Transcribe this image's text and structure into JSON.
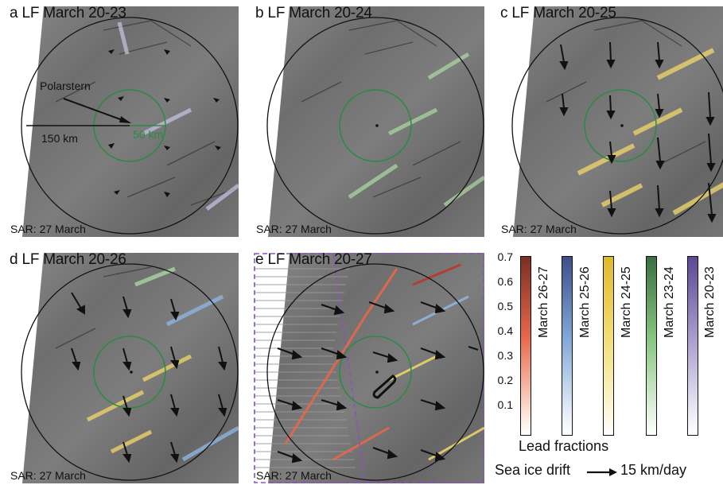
{
  "panels": [
    {
      "title": "a LF March 20-23",
      "sar": "SAR: 27 March",
      "annotation_polarstern": "Polarstern",
      "annotation_outer_radius": "150 km",
      "annotation_inner_radius": "50 km"
    },
    {
      "title": "b LF March 20-24",
      "sar": "SAR: 27 March"
    },
    {
      "title": "c LF March 20-25",
      "sar": "SAR: 27 March"
    },
    {
      "title": "d LF March 20-26",
      "sar": "SAR: 27 March"
    },
    {
      "title": "e LF March 20-27",
      "sar": "SAR: 27 March"
    }
  ],
  "legend": {
    "ticks": [
      "0.7",
      "0.6",
      "0.5",
      "0.4",
      "0.3",
      "0.2",
      "0.1"
    ],
    "colorbars": [
      {
        "label": "March 26-27",
        "color_top": "#7a2f24",
        "color_mid": "#e8674a",
        "color_bottom": "#fde9df"
      },
      {
        "label": "March 25-26",
        "color_top": "#3d4f8a",
        "color_mid": "#7fa7d6",
        "color_bottom": "#ecf2f9"
      },
      {
        "label": "March 24-25",
        "color_top": "#e0b92a",
        "color_mid": "#f2de74",
        "color_bottom": "#fdf8e2"
      },
      {
        "label": "March 23-24",
        "color_top": "#3a6e40",
        "color_mid": "#86c47f",
        "color_bottom": "#eaf5e6"
      },
      {
        "label": "March 20-23",
        "color_top": "#5c4796",
        "color_mid": "#a89ccd",
        "color_bottom": "#f1eff7"
      }
    ],
    "lead_fractions_label": "Lead fractions",
    "drift_label": "Sea ice drift",
    "drift_scale": "15 km/day"
  },
  "colors": {
    "circle_inner": "#2a8a45",
    "circle_outer": "#111111",
    "panel_e_border": "#8a55b8"
  }
}
